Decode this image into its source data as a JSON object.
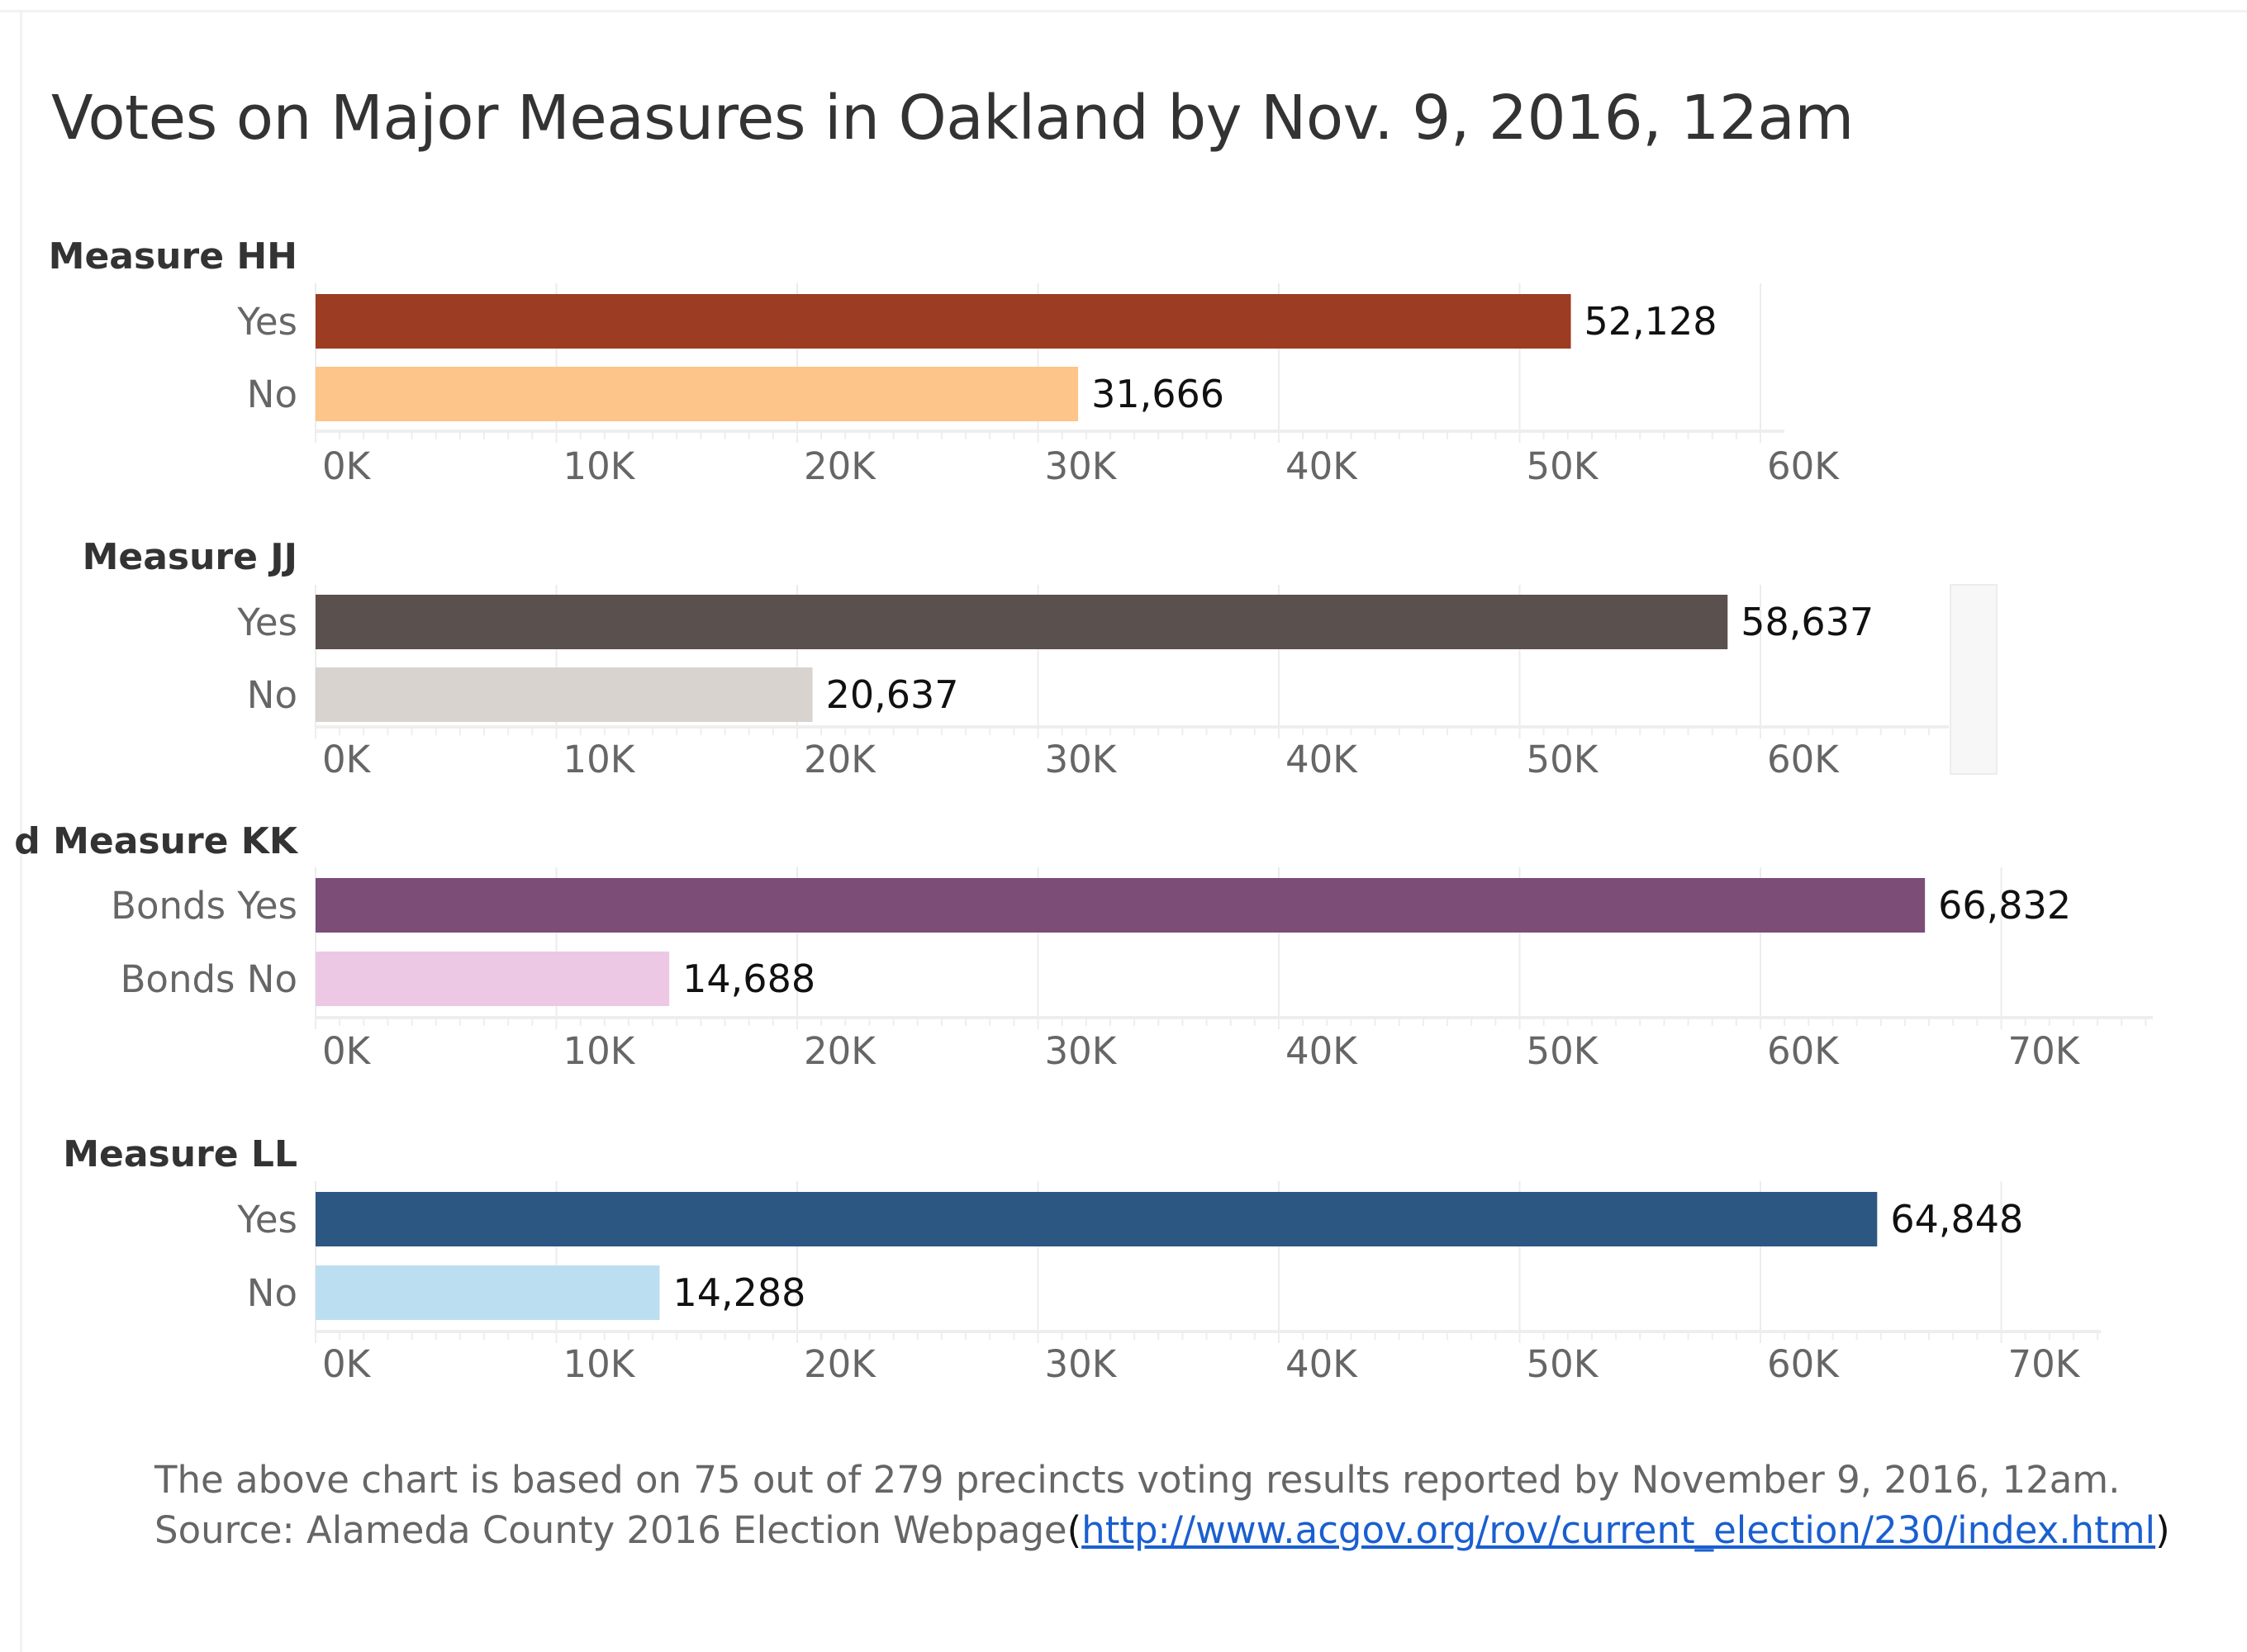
{
  "title": "Votes on Major Measures in Oakland by Nov. 9, 2016, 12am",
  "footer": {
    "line1": "The above chart is based on 75 out of 279 precincts voting results reported by November 9, 2016, 12am.",
    "line2_prefix": "Source: Alameda County 2016 Election Webpage",
    "open_paren": "(",
    "link_text": "http://www.acgov.org/rov/current_election/230/index.html",
    "close_paren": ")"
  },
  "chart_data": [
    {
      "type": "bar",
      "orientation": "horizontal",
      "panel_label": "Measure HH",
      "categories": [
        "Yes",
        "No"
      ],
      "values": [
        52128,
        31666
      ],
      "value_labels": [
        "52,128",
        "31,666"
      ],
      "colors": [
        "#9c3c23",
        "#fdc589"
      ],
      "xlim": [
        0,
        61000
      ],
      "xticks": [
        0,
        10000,
        20000,
        30000,
        40000,
        50000,
        60000
      ],
      "xtick_labels": [
        "0K",
        "10K",
        "20K",
        "30K",
        "40K",
        "50K",
        "60K"
      ],
      "grid": true
    },
    {
      "type": "bar",
      "orientation": "horizontal",
      "panel_label": "Measure JJ",
      "categories": [
        "Yes",
        "No"
      ],
      "values": [
        58637,
        20637
      ],
      "value_labels": [
        "58,637",
        "20,637"
      ],
      "colors": [
        "#5a504e",
        "#d9d3cf"
      ],
      "xlim": [
        0,
        68000
      ],
      "xticks": [
        0,
        10000,
        20000,
        30000,
        40000,
        50000,
        60000
      ],
      "xtick_labels": [
        "0K",
        "10K",
        "20K",
        "30K",
        "40K",
        "50K",
        "60K"
      ],
      "grid": true,
      "scrollbar": true
    },
    {
      "type": "bar",
      "orientation": "horizontal",
      "panel_label": "d Measure KK",
      "categories": [
        "Bonds Yes",
        "Bonds No"
      ],
      "values": [
        66832,
        14688
      ],
      "value_labels": [
        "66,832",
        "14,688"
      ],
      "colors": [
        "#7c4d77",
        "#edc8e4"
      ],
      "xlim": [
        0,
        76200
      ],
      "xticks": [
        0,
        10000,
        20000,
        30000,
        40000,
        50000,
        60000,
        70000
      ],
      "xtick_labels": [
        "0K",
        "10K",
        "20K",
        "30K",
        "40K",
        "50K",
        "60K",
        "70K"
      ],
      "grid": true
    },
    {
      "type": "bar",
      "orientation": "horizontal",
      "panel_label": "Measure LL",
      "categories": [
        "Yes",
        "No"
      ],
      "values": [
        64848,
        14288
      ],
      "value_labels": [
        "64,848",
        "14,288"
      ],
      "colors": [
        "#2c5782",
        "#bbdff0"
      ],
      "xlim": [
        0,
        74000
      ],
      "xticks": [
        0,
        10000,
        20000,
        30000,
        40000,
        50000,
        60000,
        70000
      ],
      "xtick_labels": [
        "0K",
        "10K",
        "20K",
        "30K",
        "40K",
        "50K",
        "60K",
        "70K"
      ],
      "grid": true
    }
  ]
}
